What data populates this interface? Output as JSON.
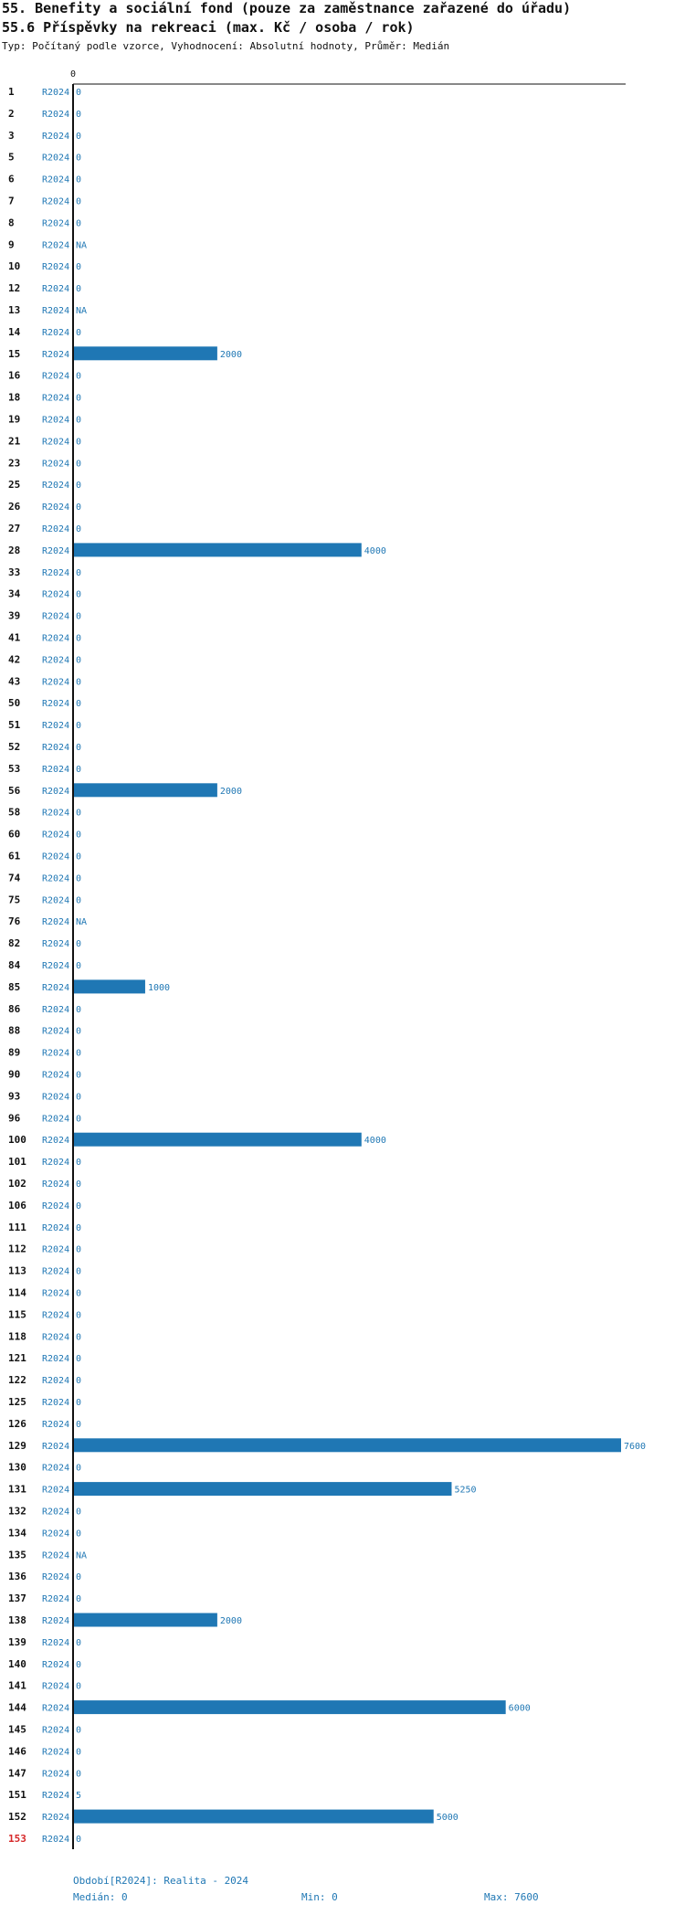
{
  "title": "55. Benefity a sociální fond (pouze za zaměstnance zařazené do úřadu)",
  "subtitle": "55.6 Příspěvky na rekreaci (max. Kč / osoba / rok)",
  "description": "Typ: Počítaný podle vzorce, Vyhodnocení: Absolutní hodnoty, Průměr: Medián",
  "footer": {
    "period": "Období[R2024]: Realita - 2024",
    "median": "Medián: 0",
    "min": "Min: 0",
    "max": "Max: 7600"
  },
  "colors": {
    "bar": "#1f77b4",
    "label": "#1f77b4",
    "highlight": "#d62728",
    "id": "#111111"
  },
  "chart_data": {
    "type": "bar",
    "orientation": "horizontal",
    "axis_tick": "0",
    "xlim": [
      0,
      7600
    ],
    "series_label": "R2024",
    "highlight_id": "153",
    "rows": [
      {
        "id": "1",
        "value": 0,
        "label": "0"
      },
      {
        "id": "2",
        "value": 0,
        "label": "0"
      },
      {
        "id": "3",
        "value": 0,
        "label": "0"
      },
      {
        "id": "5",
        "value": 0,
        "label": "0"
      },
      {
        "id": "6",
        "value": 0,
        "label": "0"
      },
      {
        "id": "7",
        "value": 0,
        "label": "0"
      },
      {
        "id": "8",
        "value": 0,
        "label": "0"
      },
      {
        "id": "9",
        "value": null,
        "label": "NA"
      },
      {
        "id": "10",
        "value": 0,
        "label": "0"
      },
      {
        "id": "12",
        "value": 0,
        "label": "0"
      },
      {
        "id": "13",
        "value": null,
        "label": "NA"
      },
      {
        "id": "14",
        "value": 0,
        "label": "0"
      },
      {
        "id": "15",
        "value": 2000,
        "label": "2000"
      },
      {
        "id": "16",
        "value": 0,
        "label": "0"
      },
      {
        "id": "18",
        "value": 0,
        "label": "0"
      },
      {
        "id": "19",
        "value": 0,
        "label": "0"
      },
      {
        "id": "21",
        "value": 0,
        "label": "0"
      },
      {
        "id": "23",
        "value": 0,
        "label": "0"
      },
      {
        "id": "25",
        "value": 0,
        "label": "0"
      },
      {
        "id": "26",
        "value": 0,
        "label": "0"
      },
      {
        "id": "27",
        "value": 0,
        "label": "0"
      },
      {
        "id": "28",
        "value": 4000,
        "label": "4000"
      },
      {
        "id": "33",
        "value": 0,
        "label": "0"
      },
      {
        "id": "34",
        "value": 0,
        "label": "0"
      },
      {
        "id": "39",
        "value": 0,
        "label": "0"
      },
      {
        "id": "41",
        "value": 0,
        "label": "0"
      },
      {
        "id": "42",
        "value": 0,
        "label": "0"
      },
      {
        "id": "43",
        "value": 0,
        "label": "0"
      },
      {
        "id": "50",
        "value": 0,
        "label": "0"
      },
      {
        "id": "51",
        "value": 0,
        "label": "0"
      },
      {
        "id": "52",
        "value": 0,
        "label": "0"
      },
      {
        "id": "53",
        "value": 0,
        "label": "0"
      },
      {
        "id": "56",
        "value": 2000,
        "label": "2000"
      },
      {
        "id": "58",
        "value": 0,
        "label": "0"
      },
      {
        "id": "60",
        "value": 0,
        "label": "0"
      },
      {
        "id": "61",
        "value": 0,
        "label": "0"
      },
      {
        "id": "74",
        "value": 0,
        "label": "0"
      },
      {
        "id": "75",
        "value": 0,
        "label": "0"
      },
      {
        "id": "76",
        "value": null,
        "label": "NA"
      },
      {
        "id": "82",
        "value": 0,
        "label": "0"
      },
      {
        "id": "84",
        "value": 0,
        "label": "0"
      },
      {
        "id": "85",
        "value": 1000,
        "label": "1000"
      },
      {
        "id": "86",
        "value": 0,
        "label": "0"
      },
      {
        "id": "88",
        "value": 0,
        "label": "0"
      },
      {
        "id": "89",
        "value": 0,
        "label": "0"
      },
      {
        "id": "90",
        "value": 0,
        "label": "0"
      },
      {
        "id": "93",
        "value": 0,
        "label": "0"
      },
      {
        "id": "96",
        "value": 0,
        "label": "0"
      },
      {
        "id": "100",
        "value": 4000,
        "label": "4000"
      },
      {
        "id": "101",
        "value": 0,
        "label": "0"
      },
      {
        "id": "102",
        "value": 0,
        "label": "0"
      },
      {
        "id": "106",
        "value": 0,
        "label": "0"
      },
      {
        "id": "111",
        "value": 0,
        "label": "0"
      },
      {
        "id": "112",
        "value": 0,
        "label": "0"
      },
      {
        "id": "113",
        "value": 0,
        "label": "0"
      },
      {
        "id": "114",
        "value": 0,
        "label": "0"
      },
      {
        "id": "115",
        "value": 0,
        "label": "0"
      },
      {
        "id": "118",
        "value": 0,
        "label": "0"
      },
      {
        "id": "121",
        "value": 0,
        "label": "0"
      },
      {
        "id": "122",
        "value": 0,
        "label": "0"
      },
      {
        "id": "125",
        "value": 0,
        "label": "0"
      },
      {
        "id": "126",
        "value": 0,
        "label": "0"
      },
      {
        "id": "129",
        "value": 7600,
        "label": "7600"
      },
      {
        "id": "130",
        "value": 0,
        "label": "0"
      },
      {
        "id": "131",
        "value": 5250,
        "label": "5250"
      },
      {
        "id": "132",
        "value": 0,
        "label": "0"
      },
      {
        "id": "134",
        "value": 0,
        "label": "0"
      },
      {
        "id": "135",
        "value": null,
        "label": "NA"
      },
      {
        "id": "136",
        "value": 0,
        "label": "0"
      },
      {
        "id": "137",
        "value": 0,
        "label": "0"
      },
      {
        "id": "138",
        "value": 2000,
        "label": "2000"
      },
      {
        "id": "139",
        "value": 0,
        "label": "0"
      },
      {
        "id": "140",
        "value": 0,
        "label": "0"
      },
      {
        "id": "141",
        "value": 0,
        "label": "0"
      },
      {
        "id": "144",
        "value": 6000,
        "label": "6000"
      },
      {
        "id": "145",
        "value": 0,
        "label": "0"
      },
      {
        "id": "146",
        "value": 0,
        "label": "0"
      },
      {
        "id": "147",
        "value": 0,
        "label": "0"
      },
      {
        "id": "151",
        "value": 5,
        "label": "5"
      },
      {
        "id": "152",
        "value": 5000,
        "label": "5000"
      },
      {
        "id": "153",
        "value": 0,
        "label": "0"
      }
    ]
  }
}
